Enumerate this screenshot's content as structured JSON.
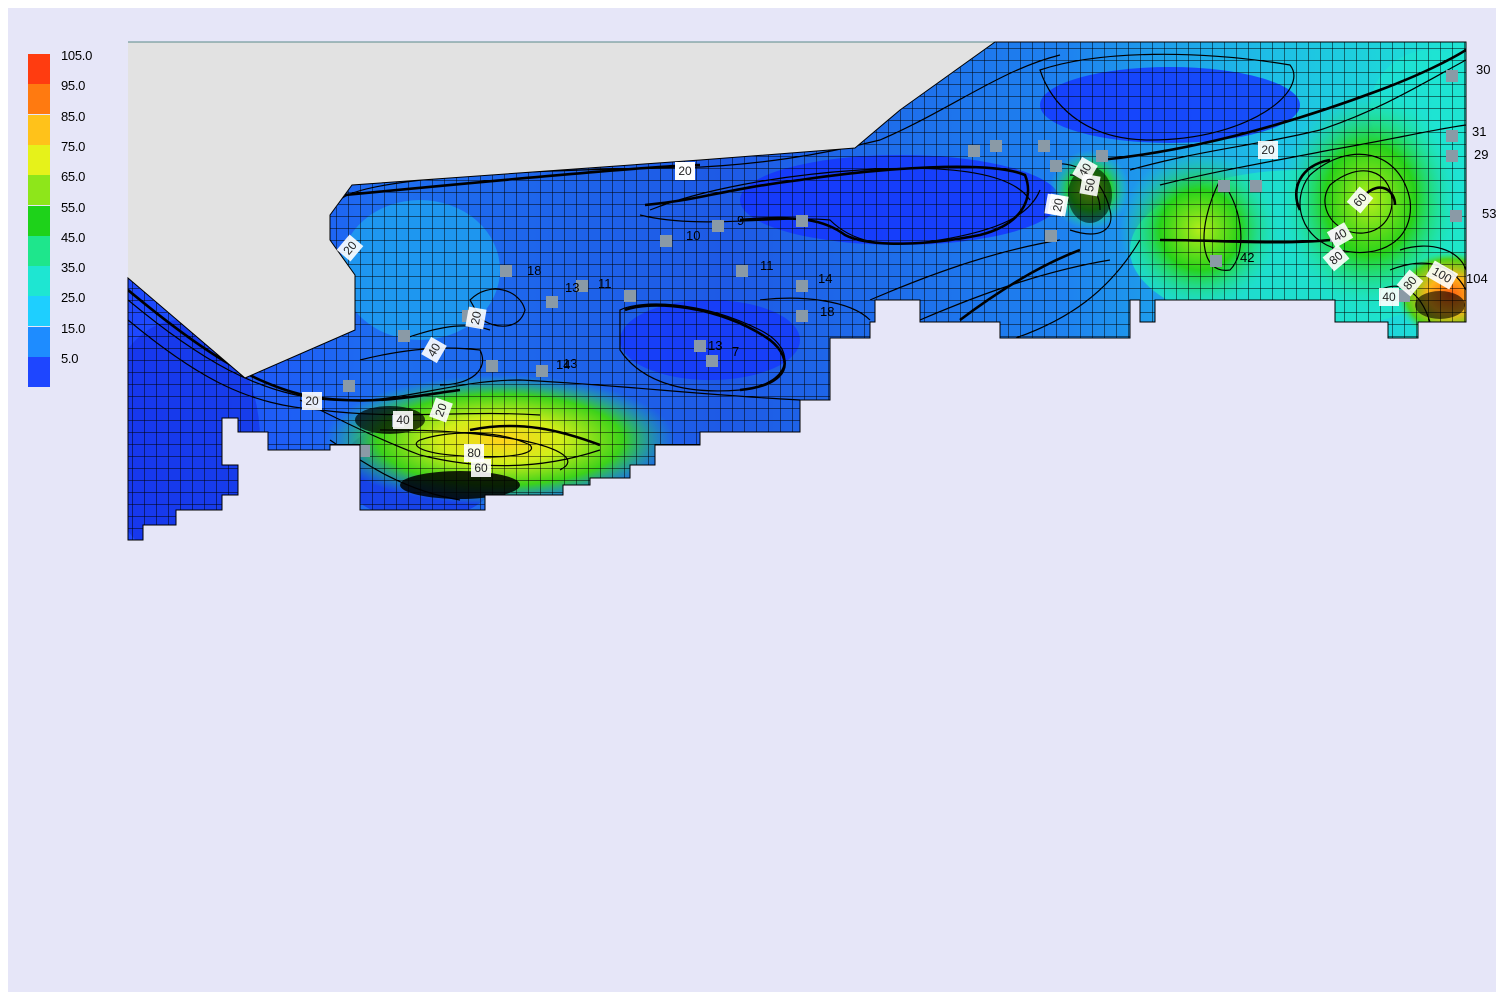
{
  "legend": {
    "stops": [
      {
        "label": "105.0",
        "color": "#ff3c10"
      },
      {
        "label": "95.0",
        "color": "#ff7a10"
      },
      {
        "label": "85.0",
        "color": "#ffc21a"
      },
      {
        "label": "75.0",
        "color": "#e6f21a"
      },
      {
        "label": "65.0",
        "color": "#8ee61a"
      },
      {
        "label": "55.0",
        "color": "#1ed21a"
      },
      {
        "label": "45.0",
        "color": "#1ee68c"
      },
      {
        "label": "35.0",
        "color": "#1ee6d2"
      },
      {
        "label": "25.0",
        "color": "#1ecfff"
      },
      {
        "label": "15.0",
        "color": "#1e8cff"
      },
      {
        "label": "5.0",
        "color": "#1e46ff"
      }
    ]
  },
  "well_labels": [
    {
      "text": "30"
    },
    {
      "text": "31"
    },
    {
      "text": "29"
    },
    {
      "text": "53"
    },
    {
      "text": "104"
    },
    {
      "text": "42"
    },
    {
      "text": "18"
    },
    {
      "text": "13"
    },
    {
      "text": "11"
    },
    {
      "text": "14"
    },
    {
      "text": "18"
    },
    {
      "text": "13"
    },
    {
      "text": "14"
    },
    {
      "text": "13"
    },
    {
      "text": "9"
    },
    {
      "text": "10"
    },
    {
      "text": "7"
    },
    {
      "text": "11"
    }
  ],
  "contour_tags": [
    {
      "text": "20"
    },
    {
      "text": "20"
    },
    {
      "text": "20"
    },
    {
      "text": "20"
    },
    {
      "text": "40"
    },
    {
      "text": "20"
    },
    {
      "text": "40"
    },
    {
      "text": "80"
    },
    {
      "text": "60"
    },
    {
      "text": "20"
    },
    {
      "text": "40"
    },
    {
      "text": "50"
    },
    {
      "text": "20"
    },
    {
      "text": "20"
    },
    {
      "text": "40"
    },
    {
      "text": "80"
    },
    {
      "text": "60"
    },
    {
      "text": "40"
    },
    {
      "text": "80"
    },
    {
      "text": "100"
    },
    {
      "text": "20"
    }
  ]
}
